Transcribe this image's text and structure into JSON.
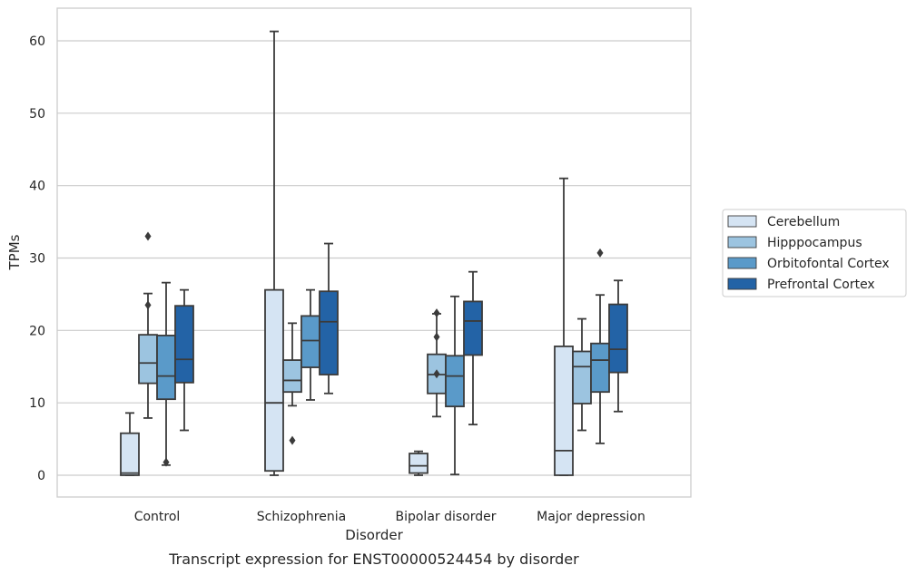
{
  "chart_data": {
    "type": "box",
    "title": "",
    "caption": "Transcript expression for ENST00000524454 by disorder",
    "xlabel": "Disorder",
    "ylabel": "TPMs",
    "ylim": [
      -3,
      64.5
    ],
    "yticks": [
      0,
      10,
      20,
      30,
      40,
      50,
      60
    ],
    "grid": "horizontal",
    "legend_position": "right",
    "categories": [
      "Control",
      "Schizophrenia",
      "Bipolar disorder",
      "Major depression"
    ],
    "series": [
      {
        "name": "Cerebellum",
        "color": "#d5e4f3",
        "boxes": [
          {
            "whisker_low": 0.0,
            "q1": 0.0,
            "median": 0.3,
            "q3": 5.8,
            "whisker_high": 8.6,
            "outliers": []
          },
          {
            "whisker_low": 0.0,
            "q1": 0.6,
            "median": 10.0,
            "q3": 25.6,
            "whisker_high": 61.3,
            "outliers": []
          },
          {
            "whisker_low": 0.0,
            "q1": 0.3,
            "median": 1.3,
            "q3": 3.0,
            "whisker_high": 3.3,
            "outliers": []
          },
          {
            "whisker_low": 0.0,
            "q1": 0.0,
            "median": 3.4,
            "q3": 17.8,
            "whisker_high": 41.0,
            "outliers": []
          }
        ]
      },
      {
        "name": "Hipppocampus",
        "color": "#9cc4e0",
        "boxes": [
          {
            "whisker_low": 7.9,
            "q1": 12.7,
            "median": 15.5,
            "q3": 19.4,
            "whisker_high": 25.1,
            "outliers": [
              33.0,
              23.5
            ]
          },
          {
            "whisker_low": 9.6,
            "q1": 11.5,
            "median": 13.1,
            "q3": 15.9,
            "whisker_high": 21.0,
            "outliers": [
              4.8
            ]
          },
          {
            "whisker_low": 8.1,
            "q1": 11.3,
            "median": 13.9,
            "q3": 16.7,
            "whisker_high": 22.3,
            "outliers": [
              22.4,
              19.1,
              14.0
            ]
          },
          {
            "whisker_low": 6.2,
            "q1": 9.9,
            "median": 15.0,
            "q3": 17.1,
            "whisker_high": 21.6,
            "outliers": []
          }
        ]
      },
      {
        "name": "Orbitofontal Cortex",
        "color": "#5a9ac9",
        "boxes": [
          {
            "whisker_low": 1.4,
            "q1": 10.5,
            "median": 13.7,
            "q3": 19.3,
            "whisker_high": 26.6,
            "outliers": [
              1.8
            ]
          },
          {
            "whisker_low": 10.4,
            "q1": 14.9,
            "median": 18.6,
            "q3": 22.0,
            "whisker_high": 25.6,
            "outliers": []
          },
          {
            "whisker_low": 0.1,
            "q1": 9.5,
            "median": 13.7,
            "q3": 16.5,
            "whisker_high": 24.7,
            "outliers": []
          },
          {
            "whisker_low": 4.4,
            "q1": 11.5,
            "median": 15.9,
            "q3": 18.2,
            "whisker_high": 24.9,
            "outliers": [
              30.7
            ]
          }
        ]
      },
      {
        "name": "Prefrontal Cortex",
        "color": "#2363a6",
        "boxes": [
          {
            "whisker_low": 6.2,
            "q1": 12.8,
            "median": 16.0,
            "q3": 23.4,
            "whisker_high": 25.6,
            "outliers": []
          },
          {
            "whisker_low": 11.3,
            "q1": 13.9,
            "median": 21.2,
            "q3": 25.4,
            "whisker_high": 32.0,
            "outliers": []
          },
          {
            "whisker_low": 7.0,
            "q1": 16.6,
            "median": 21.3,
            "q3": 24.0,
            "whisker_high": 28.1,
            "outliers": []
          },
          {
            "whisker_low": 8.8,
            "q1": 14.2,
            "median": 17.4,
            "q3": 23.6,
            "whisker_high": 26.9,
            "outliers": []
          }
        ]
      }
    ]
  }
}
